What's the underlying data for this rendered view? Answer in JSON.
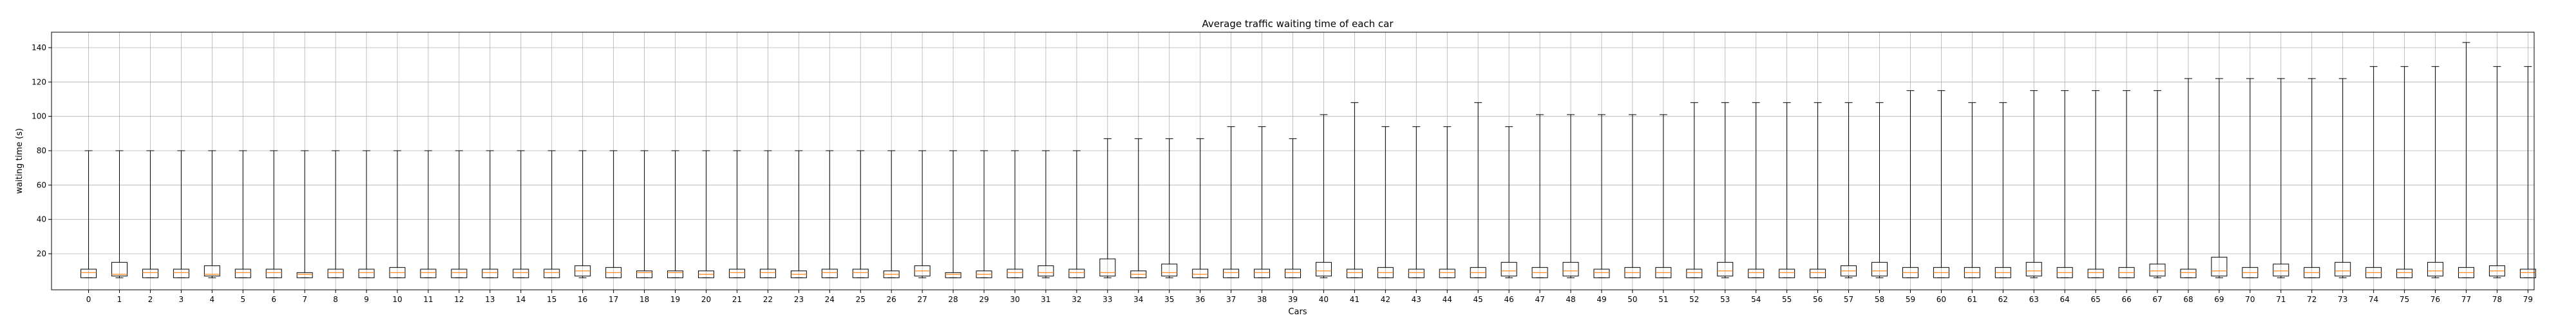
{
  "chart_data": {
    "type": "box",
    "title": "Average traffic waiting time of each car",
    "xlabel": "Cars",
    "ylabel": "waiting time (s)",
    "ylim": [
      -1,
      149
    ],
    "yticks": [
      20,
      40,
      60,
      80,
      100,
      120,
      140
    ],
    "grid": true,
    "colors": {
      "box": "#000000",
      "median": "#ff7f0e",
      "grid": "#b0b0b0"
    },
    "categories": [
      "0",
      "1",
      "2",
      "3",
      "4",
      "5",
      "6",
      "7",
      "8",
      "9",
      "10",
      "11",
      "12",
      "13",
      "14",
      "15",
      "16",
      "17",
      "18",
      "19",
      "20",
      "21",
      "22",
      "23",
      "24",
      "25",
      "26",
      "27",
      "28",
      "29",
      "30",
      "31",
      "32",
      "33",
      "34",
      "35",
      "36",
      "37",
      "38",
      "39",
      "40",
      "41",
      "42",
      "43",
      "44",
      "45",
      "46",
      "47",
      "48",
      "49",
      "50",
      "51",
      "52",
      "53",
      "54",
      "55",
      "56",
      "57",
      "58",
      "59",
      "60",
      "61",
      "62",
      "63",
      "64",
      "65",
      "66",
      "67",
      "68",
      "69",
      "70",
      "71",
      "72",
      "73",
      "74",
      "75",
      "76",
      "77",
      "78",
      "79"
    ],
    "boxes": [
      {
        "min": 6,
        "q1": 6,
        "median": 9,
        "q3": 11,
        "max": 80
      },
      {
        "min": 6,
        "q1": 7,
        "median": 8,
        "q3": 15,
        "max": 80
      },
      {
        "min": 6,
        "q1": 6,
        "median": 9,
        "q3": 11,
        "max": 80
      },
      {
        "min": 6,
        "q1": 6,
        "median": 9,
        "q3": 11,
        "max": 80
      },
      {
        "min": 6,
        "q1": 7,
        "median": 8,
        "q3": 13,
        "max": 80
      },
      {
        "min": 6,
        "q1": 6,
        "median": 9,
        "q3": 11,
        "max": 80
      },
      {
        "min": 6,
        "q1": 6,
        "median": 9,
        "q3": 11,
        "max": 80
      },
      {
        "min": 6,
        "q1": 6,
        "median": 8,
        "q3": 9,
        "max": 80
      },
      {
        "min": 6,
        "q1": 6,
        "median": 9,
        "q3": 11,
        "max": 80
      },
      {
        "min": 6,
        "q1": 6,
        "median": 9,
        "q3": 11,
        "max": 80
      },
      {
        "min": 6,
        "q1": 6,
        "median": 9,
        "q3": 12,
        "max": 80
      },
      {
        "min": 6,
        "q1": 6,
        "median": 9,
        "q3": 11,
        "max": 80
      },
      {
        "min": 6,
        "q1": 6,
        "median": 9,
        "q3": 11,
        "max": 80
      },
      {
        "min": 6,
        "q1": 6,
        "median": 9,
        "q3": 11,
        "max": 80
      },
      {
        "min": 6,
        "q1": 6,
        "median": 9,
        "q3": 11,
        "max": 80
      },
      {
        "min": 6,
        "q1": 6,
        "median": 9,
        "q3": 11,
        "max": 80
      },
      {
        "min": 6,
        "q1": 7,
        "median": 10,
        "q3": 13,
        "max": 80
      },
      {
        "min": 6,
        "q1": 6,
        "median": 9,
        "q3": 12,
        "max": 80
      },
      {
        "min": 6,
        "q1": 6,
        "median": 9,
        "q3": 10,
        "max": 80
      },
      {
        "min": 6,
        "q1": 6,
        "median": 9,
        "q3": 10,
        "max": 80
      },
      {
        "min": 6,
        "q1": 6,
        "median": 8,
        "q3": 10,
        "max": 80
      },
      {
        "min": 6,
        "q1": 6,
        "median": 9,
        "q3": 11,
        "max": 80
      },
      {
        "min": 6,
        "q1": 6,
        "median": 9,
        "q3": 11,
        "max": 80
      },
      {
        "min": 6,
        "q1": 6,
        "median": 8,
        "q3": 10,
        "max": 80
      },
      {
        "min": 6,
        "q1": 6,
        "median": 9,
        "q3": 11,
        "max": 80
      },
      {
        "min": 6,
        "q1": 6,
        "median": 9,
        "q3": 11,
        "max": 80
      },
      {
        "min": 6,
        "q1": 6,
        "median": 8,
        "q3": 10,
        "max": 80
      },
      {
        "min": 6,
        "q1": 7,
        "median": 10,
        "q3": 13,
        "max": 80
      },
      {
        "min": 6,
        "q1": 6,
        "median": 8,
        "q3": 9,
        "max": 80
      },
      {
        "min": 6,
        "q1": 6,
        "median": 8,
        "q3": 10,
        "max": 80
      },
      {
        "min": 6,
        "q1": 6,
        "median": 9,
        "q3": 11,
        "max": 80
      },
      {
        "min": 6,
        "q1": 7,
        "median": 9,
        "q3": 13,
        "max": 80
      },
      {
        "min": 6,
        "q1": 6,
        "median": 9,
        "q3": 11,
        "max": 80
      },
      {
        "min": 6,
        "q1": 7,
        "median": 9,
        "q3": 17,
        "max": 87
      },
      {
        "min": 6,
        "q1": 6,
        "median": 8,
        "q3": 10,
        "max": 87
      },
      {
        "min": 6,
        "q1": 7,
        "median": 9,
        "q3": 14,
        "max": 87
      },
      {
        "min": 6,
        "q1": 6,
        "median": 8,
        "q3": 11,
        "max": 87
      },
      {
        "min": 6,
        "q1": 6,
        "median": 9,
        "q3": 11,
        "max": 94
      },
      {
        "min": 6,
        "q1": 6,
        "median": 9,
        "q3": 11,
        "max": 94
      },
      {
        "min": 6,
        "q1": 6,
        "median": 9,
        "q3": 11,
        "max": 87
      },
      {
        "min": 6,
        "q1": 7,
        "median": 10,
        "q3": 15,
        "max": 101
      },
      {
        "min": 6,
        "q1": 6,
        "median": 9,
        "q3": 11,
        "max": 108
      },
      {
        "min": 6,
        "q1": 6,
        "median": 9,
        "q3": 12,
        "max": 94
      },
      {
        "min": 6,
        "q1": 6,
        "median": 9,
        "q3": 11,
        "max": 94
      },
      {
        "min": 6,
        "q1": 6,
        "median": 9,
        "q3": 11,
        "max": 94
      },
      {
        "min": 6,
        "q1": 6,
        "median": 9,
        "q3": 12,
        "max": 108
      },
      {
        "min": 6,
        "q1": 7,
        "median": 10,
        "q3": 15,
        "max": 94
      },
      {
        "min": 6,
        "q1": 6,
        "median": 9,
        "q3": 12,
        "max": 101
      },
      {
        "min": 6,
        "q1": 7,
        "median": 10,
        "q3": 15,
        "max": 101
      },
      {
        "min": 6,
        "q1": 6,
        "median": 9,
        "q3": 11,
        "max": 101
      },
      {
        "min": 6,
        "q1": 6,
        "median": 9,
        "q3": 12,
        "max": 101
      },
      {
        "min": 6,
        "q1": 6,
        "median": 9,
        "q3": 12,
        "max": 101
      },
      {
        "min": 6,
        "q1": 6,
        "median": 9,
        "q3": 11,
        "max": 108
      },
      {
        "min": 6,
        "q1": 7,
        "median": 10,
        "q3": 15,
        "max": 108
      },
      {
        "min": 6,
        "q1": 6,
        "median": 9,
        "q3": 11,
        "max": 108
      },
      {
        "min": 6,
        "q1": 6,
        "median": 9,
        "q3": 11,
        "max": 108
      },
      {
        "min": 6,
        "q1": 6,
        "median": 9,
        "q3": 11,
        "max": 108
      },
      {
        "min": 6,
        "q1": 7,
        "median": 10,
        "q3": 13,
        "max": 108
      },
      {
        "min": 6,
        "q1": 7,
        "median": 10,
        "q3": 15,
        "max": 108
      },
      {
        "min": 6,
        "q1": 6,
        "median": 9,
        "q3": 12,
        "max": 115
      },
      {
        "min": 6,
        "q1": 6,
        "median": 9,
        "q3": 12,
        "max": 115
      },
      {
        "min": 6,
        "q1": 6,
        "median": 9,
        "q3": 12,
        "max": 108
      },
      {
        "min": 6,
        "q1": 6,
        "median": 9,
        "q3": 12,
        "max": 108
      },
      {
        "min": 6,
        "q1": 7,
        "median": 10,
        "q3": 15,
        "max": 115
      },
      {
        "min": 6,
        "q1": 6,
        "median": 9,
        "q3": 12,
        "max": 115
      },
      {
        "min": 6,
        "q1": 6,
        "median": 9,
        "q3": 11,
        "max": 115
      },
      {
        "min": 6,
        "q1": 6,
        "median": 9,
        "q3": 12,
        "max": 115
      },
      {
        "min": 6,
        "q1": 7,
        "median": 10,
        "q3": 14,
        "max": 115
      },
      {
        "min": 6,
        "q1": 6,
        "median": 9,
        "q3": 11,
        "max": 122
      },
      {
        "min": 6,
        "q1": 7,
        "median": 10,
        "q3": 18,
        "max": 122
      },
      {
        "min": 6,
        "q1": 6,
        "median": 9,
        "q3": 12,
        "max": 122
      },
      {
        "min": 6,
        "q1": 7,
        "median": 10,
        "q3": 14,
        "max": 122
      },
      {
        "min": 6,
        "q1": 6,
        "median": 9,
        "q3": 12,
        "max": 122
      },
      {
        "min": 6,
        "q1": 7,
        "median": 10,
        "q3": 15,
        "max": 122
      },
      {
        "min": 6,
        "q1": 6,
        "median": 9,
        "q3": 12,
        "max": 129
      },
      {
        "min": 6,
        "q1": 6,
        "median": 9,
        "q3": 11,
        "max": 129
      },
      {
        "min": 6,
        "q1": 7,
        "median": 10,
        "q3": 15,
        "max": 129
      },
      {
        "min": 6,
        "q1": 6,
        "median": 9,
        "q3": 12,
        "max": 143
      },
      {
        "min": 6,
        "q1": 7,
        "median": 10,
        "q3": 13,
        "max": 129
      },
      {
        "min": 6,
        "q1": 6,
        "median": 9,
        "q3": 11,
        "max": 129
      }
    ]
  }
}
